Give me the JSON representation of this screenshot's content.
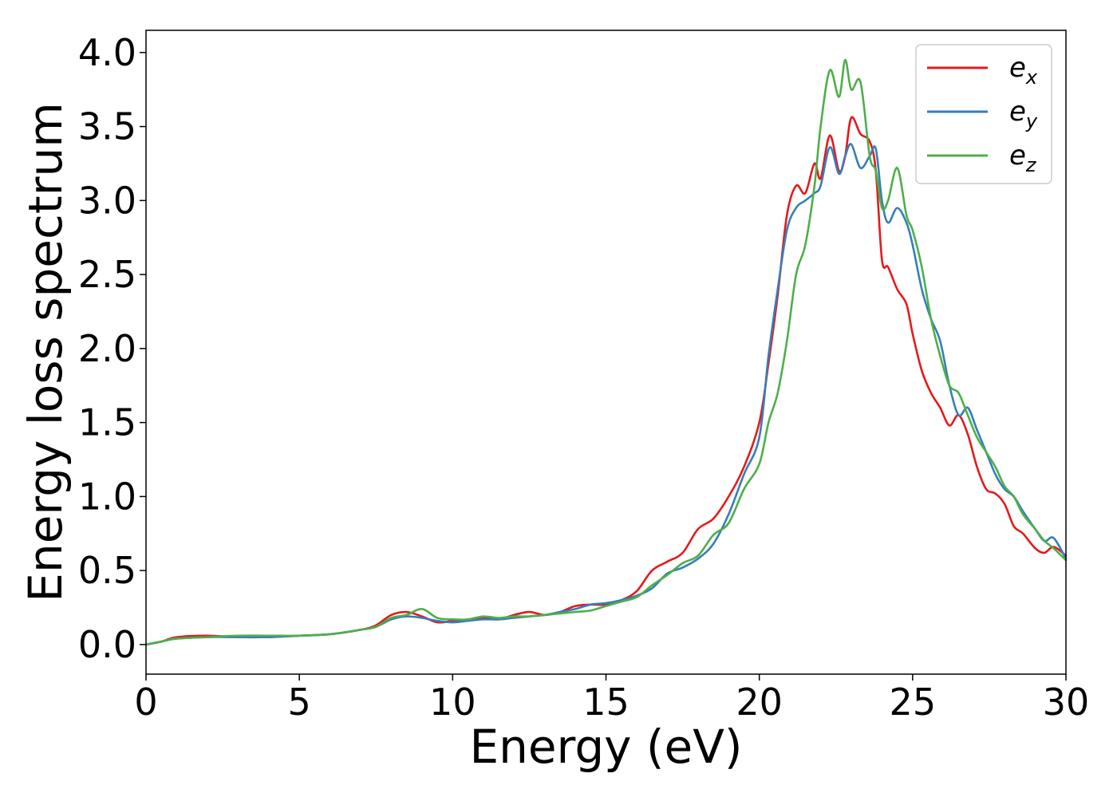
{
  "chart_data": {
    "type": "line",
    "title": "",
    "xlabel": "Energy (eV)",
    "ylabel": "Energy loss spectrum",
    "xlim": [
      0,
      30
    ],
    "ylim": [
      -0.2,
      4.15
    ],
    "xticks": [
      0,
      5,
      10,
      15,
      20,
      25,
      30
    ],
    "xtick_labels": [
      "0",
      "5",
      "10",
      "15",
      "20",
      "25",
      "30"
    ],
    "yticks": [
      0.0,
      0.5,
      1.0,
      1.5,
      2.0,
      2.5,
      3.0,
      3.5,
      4.0
    ],
    "ytick_labels": [
      "0.0",
      "0.5",
      "1.0",
      "1.5",
      "2.0",
      "2.5",
      "3.0",
      "3.5",
      "4.0"
    ],
    "grid": false,
    "legend_position": "top-right",
    "series": [
      {
        "name": "e_x",
        "label_base": "e",
        "label_sub": "x",
        "color": "#e41a1c",
        "x": [
          0,
          0.5,
          1,
          2,
          3,
          4,
          5,
          6,
          7,
          7.5,
          8,
          8.5,
          9,
          9.5,
          10,
          10.5,
          11,
          11.5,
          12,
          12.5,
          13,
          13.5,
          14,
          14.5,
          15,
          15.5,
          16,
          16.5,
          17,
          17.5,
          18,
          18.5,
          19,
          19.5,
          20,
          20.3,
          20.6,
          20.9,
          21.2,
          21.5,
          21.8,
          22.0,
          22.3,
          22.6,
          22.8,
          23.0,
          23.3,
          23.6,
          23.8,
          24.0,
          24.2,
          24.5,
          24.8,
          25.0,
          25.3,
          25.6,
          25.9,
          26.2,
          26.5,
          26.8,
          27.1,
          27.4,
          27.7,
          28.0,
          28.3,
          28.6,
          29.0,
          29.3,
          29.6,
          30.0
        ],
        "y": [
          0.0,
          0.02,
          0.05,
          0.06,
          0.05,
          0.05,
          0.06,
          0.07,
          0.1,
          0.13,
          0.2,
          0.22,
          0.19,
          0.15,
          0.16,
          0.17,
          0.18,
          0.17,
          0.2,
          0.22,
          0.2,
          0.22,
          0.26,
          0.27,
          0.27,
          0.3,
          0.36,
          0.5,
          0.56,
          0.62,
          0.78,
          0.85,
          1.0,
          1.2,
          1.5,
          1.9,
          2.36,
          2.9,
          3.1,
          3.05,
          3.25,
          3.15,
          3.44,
          3.2,
          3.3,
          3.56,
          3.45,
          3.4,
          3.2,
          2.6,
          2.55,
          2.4,
          2.3,
          2.1,
          1.85,
          1.7,
          1.6,
          1.48,
          1.55,
          1.42,
          1.2,
          1.05,
          1.02,
          0.95,
          0.8,
          0.75,
          0.65,
          0.62,
          0.66,
          0.6
        ]
      },
      {
        "name": "e_y",
        "label_base": "e",
        "label_sub": "y",
        "color": "#377eb8",
        "x": [
          0,
          0.5,
          1,
          2,
          3,
          4,
          5,
          6,
          7,
          7.5,
          8,
          8.5,
          9,
          9.5,
          10,
          10.5,
          11,
          11.5,
          12,
          12.5,
          13,
          13.5,
          14,
          14.5,
          15,
          15.5,
          16,
          16.5,
          17,
          17.5,
          18,
          18.5,
          19,
          19.5,
          20,
          20.3,
          20.6,
          20.9,
          21.2,
          21.5,
          21.8,
          22.0,
          22.3,
          22.6,
          22.8,
          23.0,
          23.3,
          23.6,
          23.8,
          24.0,
          24.2,
          24.5,
          24.8,
          25.0,
          25.3,
          25.6,
          25.9,
          26.2,
          26.5,
          26.8,
          27.1,
          27.4,
          27.7,
          28.0,
          28.3,
          28.6,
          29.0,
          29.3,
          29.6,
          30.0
        ],
        "y": [
          0.0,
          0.02,
          0.04,
          0.05,
          0.05,
          0.05,
          0.06,
          0.07,
          0.1,
          0.12,
          0.17,
          0.19,
          0.18,
          0.16,
          0.15,
          0.16,
          0.17,
          0.17,
          0.18,
          0.19,
          0.2,
          0.22,
          0.24,
          0.27,
          0.28,
          0.3,
          0.33,
          0.38,
          0.48,
          0.52,
          0.58,
          0.68,
          0.88,
          1.15,
          1.4,
          1.95,
          2.4,
          2.8,
          2.95,
          3.0,
          3.05,
          3.1,
          3.36,
          3.18,
          3.3,
          3.38,
          3.22,
          3.3,
          3.35,
          3.0,
          2.85,
          2.95,
          2.85,
          2.7,
          2.4,
          2.2,
          2.05,
          1.75,
          1.55,
          1.6,
          1.45,
          1.3,
          1.15,
          1.05,
          1.0,
          0.9,
          0.78,
          0.7,
          0.72,
          0.58
        ]
      },
      {
        "name": "e_z",
        "label_base": "e",
        "label_sub": "z",
        "color": "#4daf4a",
        "x": [
          0,
          0.5,
          1,
          2,
          3,
          4,
          5,
          6,
          7,
          7.5,
          8,
          8.5,
          9,
          9.5,
          10,
          10.5,
          11,
          11.5,
          12,
          12.5,
          13,
          13.5,
          14,
          14.5,
          15,
          15.5,
          16,
          16.5,
          17,
          17.5,
          18,
          18.5,
          19,
          19.5,
          20,
          20.3,
          20.6,
          20.9,
          21.2,
          21.5,
          21.8,
          22.0,
          22.3,
          22.6,
          22.8,
          23.0,
          23.3,
          23.6,
          23.8,
          24.0,
          24.2,
          24.5,
          24.8,
          25.0,
          25.3,
          25.6,
          25.9,
          26.2,
          26.5,
          26.8,
          27.1,
          27.4,
          27.7,
          28.0,
          28.3,
          28.6,
          29.0,
          29.3,
          29.6,
          30.0
        ],
        "y": [
          0.0,
          0.02,
          0.04,
          0.05,
          0.06,
          0.06,
          0.06,
          0.07,
          0.1,
          0.12,
          0.18,
          0.2,
          0.24,
          0.18,
          0.17,
          0.17,
          0.19,
          0.18,
          0.19,
          0.19,
          0.2,
          0.21,
          0.22,
          0.23,
          0.26,
          0.29,
          0.32,
          0.4,
          0.47,
          0.55,
          0.6,
          0.74,
          0.82,
          1.05,
          1.22,
          1.5,
          1.7,
          2.05,
          2.5,
          2.7,
          3.1,
          3.5,
          3.88,
          3.7,
          3.95,
          3.75,
          3.8,
          3.3,
          3.2,
          2.95,
          3.0,
          3.22,
          2.9,
          2.8,
          2.55,
          2.2,
          1.95,
          1.75,
          1.7,
          1.55,
          1.4,
          1.3,
          1.2,
          1.07,
          1.0,
          0.88,
          0.78,
          0.7,
          0.65,
          0.57
        ]
      }
    ]
  }
}
